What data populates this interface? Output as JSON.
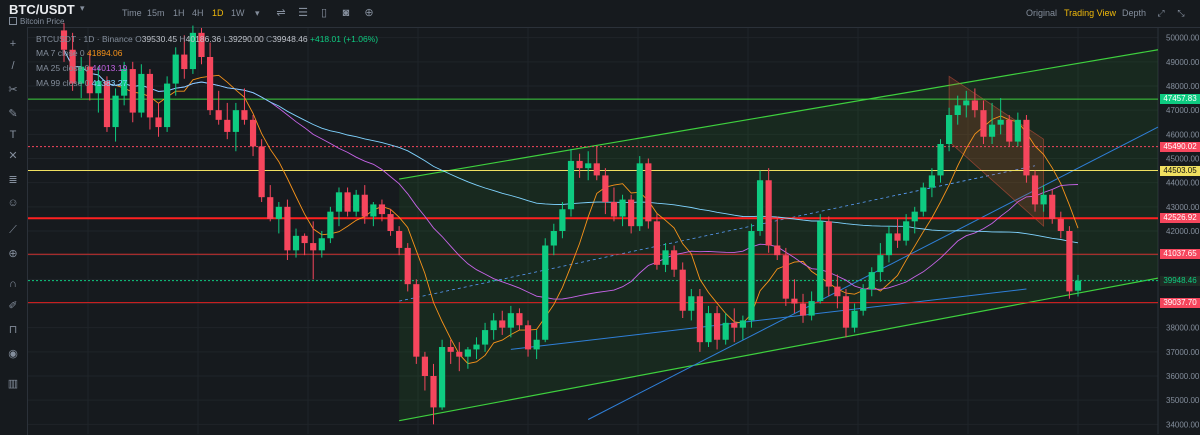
{
  "header": {
    "symbol": "BTC/USDT",
    "caret": "▾",
    "subtitle": "Bitcoin Price",
    "timeframes": [
      "Time",
      "15m",
      "1H",
      "4H",
      "1D",
      "1W"
    ],
    "active_timeframe": "1D",
    "tf_more": "▾",
    "views": [
      "Original",
      "Trading View",
      "Depth"
    ],
    "active_view": "Trading View"
  },
  "legend": {
    "line1": {
      "pair": "BTCUSDT · 1D · Binance",
      "open_label": "O",
      "open": "39530.45",
      "high_label": "H",
      "high": "40186.36",
      "low_label": "L",
      "low": "39290.00",
      "close_label": "C",
      "close": "39948.46",
      "change": "+418.01 (+1.06%)"
    },
    "ma7": {
      "label": "MA 7 close 0",
      "value": "41894.06",
      "color": "#f7931a"
    },
    "ma25": {
      "label": "MA 25 close 0",
      "value": "44013.19",
      "color": "#c764e8"
    },
    "ma99": {
      "label": "MA 99 close 0",
      "value": "41383.27",
      "color": "#7fd3ff"
    }
  },
  "colors": {
    "up": "#0ecb81",
    "down": "#f6465d",
    "grid": "#1f2429",
    "bg": "#161a1e"
  },
  "chart_data": {
    "type": "candlestick",
    "y_axis_ticks": [
      34000,
      35000,
      36000,
      37000,
      38000,
      39000,
      40000,
      41000,
      42000,
      43000,
      44000,
      45000,
      46000,
      47000,
      48000,
      49000,
      50000
    ],
    "ylim": [
      33600,
      50400
    ],
    "price_labels": [
      {
        "value": 47457.83,
        "text": "47457.83",
        "bg": "#0ecb81",
        "line": "#3ed03e"
      },
      {
        "value": 45490.02,
        "text": "45490.02",
        "bg": "#f6465d",
        "line": "#f6465d",
        "dashed": true
      },
      {
        "value": 44503.05,
        "text": "44503.05",
        "bg": "#f0e060",
        "fg": "#111",
        "line": "#f0e060"
      },
      {
        "value": 42526.92,
        "text": "42526.92",
        "bg": "#f6465d",
        "line": "#ff2020"
      },
      {
        "value": 41037.65,
        "text": "41037.65",
        "bg": "#f6465d",
        "line": "#d03030"
      },
      {
        "value": 39948.46,
        "text": "39948.46",
        "bg": "#1f2a24",
        "fg": "#0ecb81",
        "line": "#0ecb81",
        "dashed": true
      },
      {
        "value": 39037.7,
        "text": "39037.70",
        "bg": "#f6465d",
        "line": "#e02020"
      }
    ],
    "candles": [
      [
        50300,
        50600,
        49000,
        49500
      ],
      [
        49500,
        50200,
        47800,
        48100
      ],
      [
        48100,
        49200,
        47500,
        48800
      ],
      [
        48800,
        49400,
        47400,
        47700
      ],
      [
        47700,
        48800,
        46900,
        48200
      ],
      [
        48200,
        48400,
        46100,
        46300
      ],
      [
        46300,
        47900,
        45700,
        47600
      ],
      [
        47600,
        49000,
        47200,
        48700
      ],
      [
        48700,
        49000,
        46500,
        46900
      ],
      [
        46900,
        48900,
        46700,
        48500
      ],
      [
        48500,
        48700,
        46200,
        46700
      ],
      [
        46700,
        47300,
        45900,
        46300
      ],
      [
        46300,
        48400,
        46100,
        48100
      ],
      [
        48100,
        49600,
        47600,
        49300
      ],
      [
        49300,
        50100,
        48300,
        48700
      ],
      [
        48700,
        50500,
        48500,
        50200
      ],
      [
        50200,
        50400,
        48900,
        49200
      ],
      [
        49200,
        49800,
        46800,
        47000
      ],
      [
        47000,
        47800,
        46400,
        46600
      ],
      [
        46600,
        47300,
        45800,
        46100
      ],
      [
        46100,
        47300,
        45300,
        47000
      ],
      [
        47000,
        47900,
        46400,
        46600
      ],
      [
        46600,
        46800,
        45100,
        45500
      ],
      [
        45500,
        45800,
        43200,
        43400
      ],
      [
        43400,
        43900,
        42400,
        42500
      ],
      [
        42500,
        43200,
        41900,
        43000
      ],
      [
        43000,
        43300,
        40800,
        41200
      ],
      [
        41200,
        42100,
        40900,
        41800
      ],
      [
        41800,
        41900,
        41000,
        41500
      ],
      [
        41500,
        42400,
        40000,
        41200
      ],
      [
        41200,
        42000,
        40900,
        41700
      ],
      [
        41700,
        43000,
        41500,
        42800
      ],
      [
        42800,
        43800,
        42200,
        43600
      ],
      [
        43600,
        43800,
        42600,
        42800
      ],
      [
        42800,
        43700,
        42600,
        43500
      ],
      [
        43500,
        43900,
        42300,
        42600
      ],
      [
        42600,
        43200,
        42200,
        43100
      ],
      [
        43100,
        43300,
        42400,
        42700
      ],
      [
        42700,
        42900,
        41800,
        42000
      ],
      [
        42000,
        42200,
        41000,
        41300
      ],
      [
        41300,
        41500,
        39500,
        39800
      ],
      [
        39800,
        40000,
        36500,
        36800
      ],
      [
        36800,
        37000,
        35400,
        36000
      ],
      [
        36000,
        36500,
        34000,
        34700
      ],
      [
        34700,
        37500,
        34600,
        37200
      ],
      [
        37200,
        37500,
        36500,
        37000
      ],
      [
        37000,
        37400,
        36200,
        36800
      ],
      [
        36800,
        37200,
        36300,
        37100
      ],
      [
        37100,
        37600,
        36700,
        37300
      ],
      [
        37300,
        38200,
        37000,
        37900
      ],
      [
        37900,
        38600,
        37500,
        38300
      ],
      [
        38300,
        38700,
        37700,
        38000
      ],
      [
        38000,
        38900,
        37600,
        38600
      ],
      [
        38600,
        38800,
        37900,
        38100
      ],
      [
        38100,
        38300,
        36800,
        37100
      ],
      [
        37100,
        37900,
        36700,
        37500
      ],
      [
        37500,
        41700,
        37400,
        41400
      ],
      [
        41400,
        42300,
        41000,
        42000
      ],
      [
        42000,
        43200,
        41700,
        42900
      ],
      [
        42900,
        45400,
        42600,
        44900
      ],
      [
        44900,
        45200,
        44200,
        44600
      ],
      [
        44600,
        45300,
        44100,
        44800
      ],
      [
        44800,
        45500,
        44100,
        44300
      ],
      [
        44300,
        44600,
        42700,
        43200
      ],
      [
        43200,
        43800,
        42400,
        42600
      ],
      [
        42600,
        43500,
        42200,
        43300
      ],
      [
        43300,
        43500,
        41900,
        42200
      ],
      [
        42200,
        45100,
        42000,
        44800
      ],
      [
        44800,
        45000,
        42100,
        42400
      ],
      [
        42400,
        42700,
        40400,
        40600
      ],
      [
        40600,
        41500,
        40300,
        41200
      ],
      [
        41200,
        41400,
        40100,
        40400
      ],
      [
        40400,
        40700,
        38400,
        38700
      ],
      [
        38700,
        39600,
        38300,
        39300
      ],
      [
        39300,
        39600,
        37000,
        37400
      ],
      [
        37400,
        38900,
        37200,
        38600
      ],
      [
        38600,
        38900,
        37100,
        37500
      ],
      [
        37500,
        38600,
        37300,
        38200
      ],
      [
        38200,
        38800,
        37400,
        38000
      ],
      [
        38000,
        38500,
        37500,
        38300
      ],
      [
        38300,
        42300,
        38000,
        42000
      ],
      [
        42000,
        44500,
        41800,
        44100
      ],
      [
        44100,
        44600,
        41100,
        41400
      ],
      [
        41400,
        42600,
        40800,
        41000
      ],
      [
        41000,
        41300,
        38900,
        39200
      ],
      [
        39200,
        40000,
        38600,
        39000
      ],
      [
        39000,
        39400,
        38200,
        38500
      ],
      [
        38500,
        39500,
        38300,
        39100
      ],
      [
        39100,
        42700,
        39000,
        42400
      ],
      [
        42400,
        42600,
        39300,
        39700
      ],
      [
        39700,
        40200,
        38800,
        39300
      ],
      [
        39300,
        39600,
        37600,
        38000
      ],
      [
        38000,
        39000,
        37800,
        38700
      ],
      [
        38700,
        39800,
        38500,
        39600
      ],
      [
        39600,
        40500,
        39300,
        40300
      ],
      [
        40300,
        41500,
        39900,
        41000
      ],
      [
        41000,
        42200,
        40700,
        41900
      ],
      [
        41900,
        42500,
        41300,
        41600
      ],
      [
        41600,
        42700,
        41400,
        42400
      ],
      [
        42400,
        43000,
        41900,
        42800
      ],
      [
        42800,
        44000,
        42600,
        43800
      ],
      [
        43800,
        44600,
        43400,
        44300
      ],
      [
        44300,
        45800,
        44000,
        45600
      ],
      [
        45600,
        47100,
        45300,
        46800
      ],
      [
        46800,
        47600,
        46400,
        47200
      ],
      [
        47200,
        47800,
        46700,
        47400
      ],
      [
        47400,
        47900,
        46700,
        47000
      ],
      [
        47000,
        47400,
        45600,
        45900
      ],
      [
        45900,
        47300,
        45600,
        46400
      ],
      [
        46400,
        47500,
        46000,
        46600
      ],
      [
        46600,
        46800,
        45500,
        45700
      ],
      [
        45700,
        46900,
        45500,
        46600
      ],
      [
        46600,
        46800,
        44000,
        44300
      ],
      [
        44300,
        44500,
        42800,
        43100
      ],
      [
        43100,
        43900,
        42800,
        43500
      ],
      [
        43500,
        43700,
        42300,
        42500
      ],
      [
        42500,
        42800,
        41700,
        42000
      ],
      [
        42000,
        42200,
        39200,
        39500
      ],
      [
        39530.45,
        40186.36,
        39290,
        39948.46
      ]
    ]
  }
}
